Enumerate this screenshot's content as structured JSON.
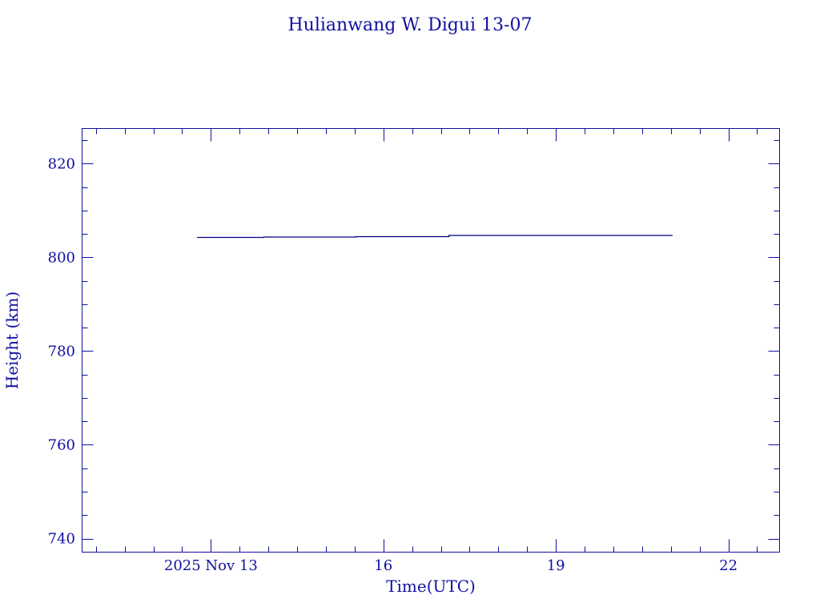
{
  "chart_data": {
    "type": "line",
    "title": "Hulianwang W. Digui 13-07",
    "xlabel": "Time(UTC)",
    "ylabel": "Height (km)",
    "x_unit": "day of 2025 Nov (UTC)",
    "xlim": [
      10.76,
      22.89
    ],
    "ylim": [
      737.1,
      827.5
    ],
    "x_ticks": [
      {
        "value": 13,
        "label": "2025 Nov 13"
      },
      {
        "value": 16,
        "label": "16"
      },
      {
        "value": 19,
        "label": "19"
      },
      {
        "value": 22,
        "label": "22"
      }
    ],
    "y_ticks": [
      {
        "value": 740,
        "label": "740"
      },
      {
        "value": 760,
        "label": "760"
      },
      {
        "value": 780,
        "label": "780"
      },
      {
        "value": 800,
        "label": "800"
      },
      {
        "value": 820,
        "label": "820"
      }
    ],
    "grid": false,
    "series": [
      {
        "step": true,
        "x": [
          12.76,
          13.92,
          15.53,
          17.14,
          21.03
        ],
        "y": [
          804.26,
          804.35,
          804.43,
          804.69,
          804.69
        ]
      }
    ],
    "colors": {
      "axes": "#1010a0",
      "line": "#000080"
    }
  }
}
